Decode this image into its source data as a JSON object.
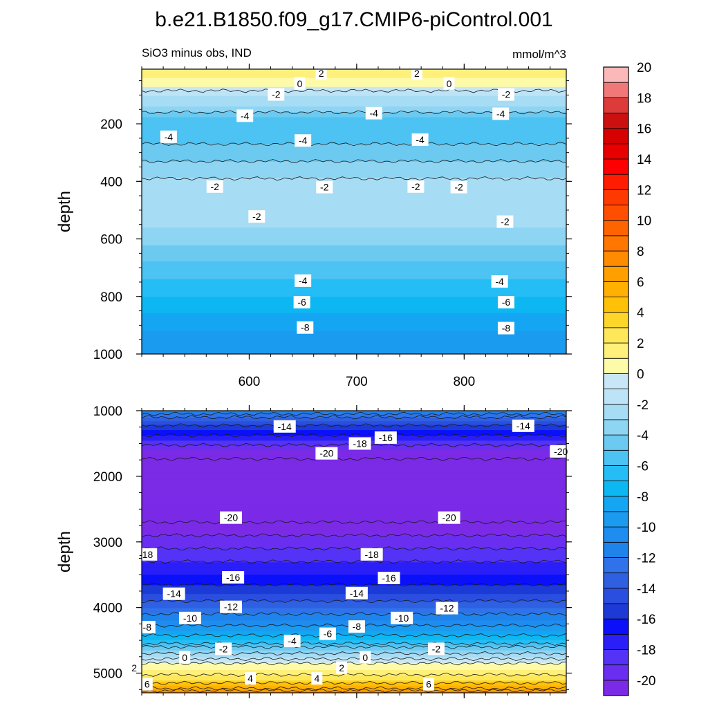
{
  "figure": {
    "title": "b.e21.B1850.f09_g17.CMIP6-piControl.001"
  },
  "chart_data": [
    {
      "type": "heatmap",
      "panel": "upper",
      "subtitle_left": "SiO3 minus obs, IND",
      "subtitle_right": "mmol/m^3",
      "ylabel": "depth",
      "xlabel": "",
      "xlim": [
        500,
        895
      ],
      "ylim": [
        1000,
        10
      ],
      "x_ticks": [
        600,
        700,
        800
      ],
      "x_tick_labels": [
        "600",
        "700",
        "800"
      ],
      "y_ticks": [
        200,
        400,
        600,
        800,
        1000
      ],
      "y_tick_labels": [
        "200",
        "400",
        "600",
        "800",
        "1000"
      ],
      "depth_profile": [
        {
          "depth": 10,
          "value": 3
        },
        {
          "depth": 40,
          "value": 2
        },
        {
          "depth": 70,
          "value": 1
        },
        {
          "depth": 100,
          "value": -1
        },
        {
          "depth": 140,
          "value": -2
        },
        {
          "depth": 180,
          "value": -4
        },
        {
          "depth": 240,
          "value": -4.5
        },
        {
          "depth": 300,
          "value": -3.5
        },
        {
          "depth": 360,
          "value": -2.5
        },
        {
          "depth": 420,
          "value": -1.5
        },
        {
          "depth": 500,
          "value": -1.5
        },
        {
          "depth": 560,
          "value": -2
        },
        {
          "depth": 620,
          "value": -3
        },
        {
          "depth": 680,
          "value": -4
        },
        {
          "depth": 740,
          "value": -5
        },
        {
          "depth": 800,
          "value": -6
        },
        {
          "depth": 860,
          "value": -7
        },
        {
          "depth": 920,
          "value": -8
        },
        {
          "depth": 1000,
          "value": -9
        }
      ],
      "contour_labels": [
        {
          "text": "2",
          "x": 667,
          "depth": 25
        },
        {
          "text": "2",
          "x": 756,
          "depth": 25
        },
        {
          "text": "0",
          "x": 647,
          "depth": 60
        },
        {
          "text": "0",
          "x": 786,
          "depth": 60
        },
        {
          "text": "-2",
          "x": 625,
          "depth": 98
        },
        {
          "text": "-2",
          "x": 839,
          "depth": 98
        },
        {
          "text": "-4",
          "x": 596,
          "depth": 172
        },
        {
          "text": "-4",
          "x": 716,
          "depth": 163
        },
        {
          "text": "-4",
          "x": 834,
          "depth": 165
        },
        {
          "text": "-4",
          "x": 525,
          "depth": 245
        },
        {
          "text": "-4",
          "x": 650,
          "depth": 258
        },
        {
          "text": "-4",
          "x": 759,
          "depth": 255
        },
        {
          "text": "-2",
          "x": 568,
          "depth": 418
        },
        {
          "text": "-2",
          "x": 670,
          "depth": 420
        },
        {
          "text": "-2",
          "x": 755,
          "depth": 418
        },
        {
          "text": "-2",
          "x": 795,
          "depth": 420
        },
        {
          "text": "-2",
          "x": 607,
          "depth": 522
        },
        {
          "text": "-2",
          "x": 838,
          "depth": 540
        },
        {
          "text": "-4",
          "x": 650,
          "depth": 745
        },
        {
          "text": "-4",
          "x": 833,
          "depth": 748
        },
        {
          "text": "-6",
          "x": 649,
          "depth": 820
        },
        {
          "text": "-6",
          "x": 839,
          "depth": 820
        },
        {
          "text": "-8",
          "x": 652,
          "depth": 908
        },
        {
          "text": "-8",
          "x": 839,
          "depth": 910
        }
      ]
    },
    {
      "type": "heatmap",
      "panel": "lower",
      "ylabel": "depth",
      "xlabel": "",
      "xlim": [
        500,
        895
      ],
      "ylim": [
        5300,
        1000
      ],
      "x_ticks": [
        600,
        700,
        800
      ],
      "x_tick_labels": [],
      "y_ticks": [
        1000,
        2000,
        3000,
        4000,
        5000
      ],
      "y_tick_labels": [
        "1000",
        "2000",
        "3000",
        "4000",
        "5000"
      ],
      "depth_profile": [
        {
          "depth": 1000,
          "value": -10
        },
        {
          "depth": 1150,
          "value": -13
        },
        {
          "depth": 1300,
          "value": -15
        },
        {
          "depth": 1450,
          "value": -17
        },
        {
          "depth": 1600,
          "value": -19
        },
        {
          "depth": 1800,
          "value": -20.5
        },
        {
          "depth": 2600,
          "value": -20.5
        },
        {
          "depth": 2800,
          "value": -19.5
        },
        {
          "depth": 3000,
          "value": -18.5
        },
        {
          "depth": 3200,
          "value": -17.5
        },
        {
          "depth": 3500,
          "value": -16
        },
        {
          "depth": 3800,
          "value": -14
        },
        {
          "depth": 4000,
          "value": -12
        },
        {
          "depth": 4200,
          "value": -10
        },
        {
          "depth": 4350,
          "value": -8
        },
        {
          "depth": 4500,
          "value": -6
        },
        {
          "depth": 4650,
          "value": -3
        },
        {
          "depth": 4750,
          "value": -1
        },
        {
          "depth": 4800,
          "value": 0.5
        },
        {
          "depth": 4950,
          "value": 2
        },
        {
          "depth": 5100,
          "value": 4
        },
        {
          "depth": 5200,
          "value": 6
        },
        {
          "depth": 5300,
          "value": 9
        }
      ],
      "contour_labels": [
        {
          "text": "-14",
          "x": 633,
          "depth": 1240
        },
        {
          "text": "-14",
          "x": 855,
          "depth": 1230
        },
        {
          "text": "-16",
          "x": 727,
          "depth": 1410
        },
        {
          "text": "-18",
          "x": 703,
          "depth": 1500
        },
        {
          "text": "-18",
          "x": 918,
          "depth": 1480
        },
        {
          "text": "-20",
          "x": 672,
          "depth": 1650
        },
        {
          "text": "-20",
          "x": 890,
          "depth": 1620
        },
        {
          "text": "-20",
          "x": 583,
          "depth": 2630
        },
        {
          "text": "-20",
          "x": 786,
          "depth": 2630
        },
        {
          "text": "-18",
          "x": 504,
          "depth": 3190
        },
        {
          "text": "-18",
          "x": 714,
          "depth": 3190
        },
        {
          "text": "-16",
          "x": 585,
          "depth": 3540
        },
        {
          "text": "-16",
          "x": 730,
          "depth": 3550
        },
        {
          "text": "-14",
          "x": 530,
          "depth": 3790
        },
        {
          "text": "-14",
          "x": 700,
          "depth": 3780
        },
        {
          "text": "-12",
          "x": 583,
          "depth": 3990
        },
        {
          "text": "-12",
          "x": 784,
          "depth": 4010
        },
        {
          "text": "-10",
          "x": 545,
          "depth": 4160
        },
        {
          "text": "-10",
          "x": 742,
          "depth": 4160
        },
        {
          "text": "-8",
          "x": 505,
          "depth": 4300
        },
        {
          "text": "-8",
          "x": 700,
          "depth": 4290
        },
        {
          "text": "-6",
          "x": 404,
          "depth": 4410
        },
        {
          "text": "-6",
          "x": 673,
          "depth": 4400
        },
        {
          "text": "-4",
          "x": 640,
          "depth": 4510
        },
        {
          "text": "-2",
          "x": 576,
          "depth": 4630
        },
        {
          "text": "-2",
          "x": 774,
          "depth": 4630
        },
        {
          "text": "0",
          "x": 540,
          "depth": 4760
        },
        {
          "text": "0",
          "x": 708,
          "depth": 4760
        },
        {
          "text": "2",
          "x": 493,
          "depth": 4920
        },
        {
          "text": "2",
          "x": 686,
          "depth": 4920
        },
        {
          "text": "4",
          "x": 601,
          "depth": 5080
        },
        {
          "text": "4",
          "x": 663,
          "depth": 5080
        },
        {
          "text": "6",
          "x": 505,
          "depth": 5170
        },
        {
          "text": "6",
          "x": 767,
          "depth": 5170
        }
      ]
    }
  ],
  "colorbar": {
    "levels": [
      -20,
      -19,
      -18,
      -17,
      -16,
      -15,
      -14,
      -13,
      -12,
      -11,
      -10,
      -9,
      -8,
      -7,
      -6,
      -5,
      -4,
      -3,
      -2,
      -1,
      0,
      1,
      2,
      3,
      4,
      5,
      6,
      7,
      8,
      9,
      10,
      11,
      12,
      13,
      14,
      15,
      16,
      17,
      18,
      19,
      20
    ],
    "tick_labels": [
      "-20",
      "-18",
      "-16",
      "-14",
      "-12",
      "-10",
      "-8",
      "-6",
      "-4",
      "-2",
      "0",
      "2",
      "4",
      "6",
      "8",
      "10",
      "12",
      "14",
      "16",
      "18",
      "20"
    ],
    "colors": [
      "#7b2ae6",
      "#6a2ef0",
      "#5432f6",
      "#2a1ff8",
      "#0a10fa",
      "#1d3ad6",
      "#2a4fe0",
      "#2f60e2",
      "#2f72ea",
      "#1e84ec",
      "#1f8cf0",
      "#1a9bf0",
      "#14a6f2",
      "#0db7f2",
      "#24bdf5",
      "#4cc3f3",
      "#6ccaf1",
      "#8ed5f3",
      "#a6dcf4",
      "#bde4f6",
      "#c8e6f6",
      "#fefba8",
      "#fef07a",
      "#fee85a",
      "#fed62a",
      "#ffc107",
      "#ffb000",
      "#ffa000",
      "#ff8c00",
      "#ff7600",
      "#ff6400",
      "#ff4e00",
      "#ff3a00",
      "#ff1c00",
      "#fe0000",
      "#e80000",
      "#d60000",
      "#cc1010",
      "#dd3a3a",
      "#f07878",
      "#fbb8b8"
    ]
  }
}
